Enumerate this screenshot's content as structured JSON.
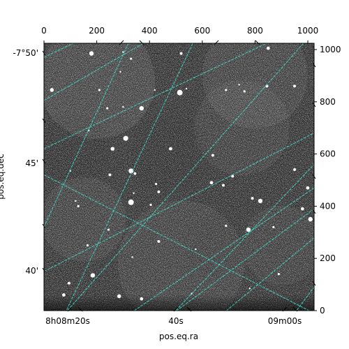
{
  "chart_data": {
    "type": "image",
    "title": "",
    "xlabel": "pos.eq.ra",
    "ylabel": "pos.eq.dec",
    "pixel_axes": {
      "x_range": [
        0,
        1024
      ],
      "y_range": [
        0,
        1024
      ],
      "x_ticks": [
        0,
        200,
        400,
        600,
        800,
        1000
      ],
      "y_ticks": [
        0,
        200,
        400,
        600,
        800,
        1000
      ]
    },
    "world_axes": {
      "ra_tick_labels": [
        "8h08m20s",
        "40s",
        "09m00s"
      ],
      "dec_tick_labels": [
        "-7°50'",
        "45'",
        "40'"
      ]
    },
    "grid": true,
    "grid_color": "#40e0d0",
    "image_colormap": "gray",
    "background_color": "#2a2a2a",
    "stars": [
      [
        180,
        985,
        8
      ],
      [
        330,
        965,
        4
      ],
      [
        300,
        990,
        3
      ],
      [
        520,
        985,
        5
      ],
      [
        850,
        1005,
        6
      ],
      [
        290,
        915,
        3
      ],
      [
        420,
        845,
        3
      ],
      [
        540,
        850,
        3
      ],
      [
        30,
        845,
        7
      ],
      [
        210,
        845,
        4
      ],
      [
        690,
        845,
        4
      ],
      [
        740,
        865,
        3
      ],
      [
        760,
        840,
        4
      ],
      [
        515,
        835,
        10
      ],
      [
        845,
        860,
        5
      ],
      [
        950,
        860,
        5
      ],
      [
        370,
        775,
        8
      ],
      [
        240,
        775,
        4
      ],
      [
        300,
        780,
        3
      ],
      [
        310,
        660,
        9
      ],
      [
        260,
        620,
        7
      ],
      [
        480,
        620,
        6
      ],
      [
        100,
        535,
        3
      ],
      [
        250,
        520,
        5
      ],
      [
        330,
        535,
        9
      ],
      [
        345,
        525,
        5
      ],
      [
        635,
        490,
        6
      ],
      [
        680,
        480,
        5
      ],
      [
        715,
        515,
        5
      ],
      [
        425,
        485,
        4
      ],
      [
        435,
        455,
        5
      ],
      [
        340,
        450,
        3
      ],
      [
        120,
        420,
        3
      ],
      [
        130,
        400,
        4
      ],
      [
        330,
        415,
        10
      ],
      [
        405,
        405,
        4
      ],
      [
        790,
        430,
        5
      ],
      [
        820,
        420,
        8
      ],
      [
        980,
        390,
        6
      ],
      [
        1010,
        350,
        8
      ],
      [
        245,
        310,
        4
      ],
      [
        690,
        325,
        4
      ],
      [
        775,
        310,
        8
      ],
      [
        870,
        320,
        4
      ],
      [
        435,
        265,
        5
      ],
      [
        165,
        250,
        4
      ],
      [
        575,
        235,
        3
      ],
      [
        335,
        205,
        3
      ],
      [
        185,
        135,
        8
      ],
      [
        95,
        105,
        5
      ],
      [
        75,
        60,
        6
      ],
      [
        285,
        55,
        7
      ],
      [
        370,
        45,
        6
      ],
      [
        890,
        140,
        4
      ],
      [
        780,
        85,
        3
      ],
      [
        560,
        65,
        3
      ],
      [
        640,
        595,
        5
      ],
      [
        950,
        540,
        5
      ],
      [
        1000,
        470,
        6
      ],
      [
        170,
        690,
        3
      ]
    ],
    "brightness_patches": [
      [
        200,
        880,
        220,
        0.1
      ],
      [
        800,
        900,
        200,
        0.08
      ],
      [
        750,
        700,
        180,
        0.06
      ],
      [
        150,
        350,
        160,
        0.07
      ],
      [
        520,
        180,
        240,
        0.07
      ],
      [
        900,
        250,
        150,
        0.06
      ],
      [
        480,
        600,
        150,
        -0.05
      ],
      [
        650,
        250,
        120,
        -0.04
      ],
      [
        120,
        620,
        130,
        -0.05
      ]
    ],
    "edge_noise_bottom": [
      0,
      60
    ],
    "grid_lines": [
      {
        "x1": 0,
        "y1": 970,
        "x2": 370,
        "y2": 1150
      },
      {
        "x1": 0,
        "y1": 520,
        "x2": 1024,
        "y2": -10
      },
      {
        "x1": 0,
        "y1": 150,
        "x2": 1024,
        "y2": 680
      },
      {
        "x1": 0,
        "y1": 320,
        "x2": 320,
        "y2": 1024
      },
      {
        "x1": 80,
        "y1": -10,
        "x2": 1050,
        "y2": 1100
      },
      {
        "x1": 0,
        "y1": 805,
        "x2": 1024,
        "y2": 1400
      },
      {
        "x1": 270,
        "y1": -50,
        "x2": 1024,
        "y2": 470
      },
      {
        "x1": 490,
        "y1": -10,
        "x2": 1024,
        "y2": 390
      },
      {
        "x1": 0,
        "y1": 620,
        "x2": 1024,
        "y2": 1110
      },
      {
        "x1": 80,
        "y1": -10,
        "x2": 600,
        "y2": 1100
      },
      {
        "x1": 680,
        "y1": -10,
        "x2": 1050,
        "y2": 300
      },
      {
        "x1": 490,
        "y1": -10,
        "x2": 1024,
        "y2": 560
      },
      {
        "x1": 950,
        "y1": -10,
        "x2": 1024,
        "y2": 90
      }
    ]
  }
}
